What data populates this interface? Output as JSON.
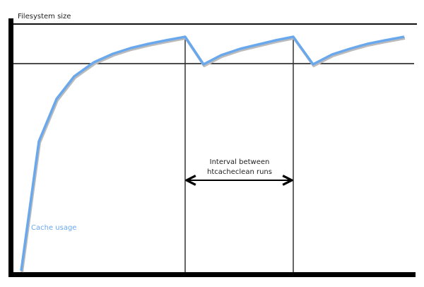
{
  "diagram": {
    "y_axis_label": "Filesystem size",
    "series_label": "Cache usage",
    "interval_label_line1": "Interval between",
    "interval_label_line2": "htcacheclean runs",
    "colors": {
      "curve": "#6aa8ee",
      "axes": "#000000",
      "lines": "#222222"
    }
  }
}
